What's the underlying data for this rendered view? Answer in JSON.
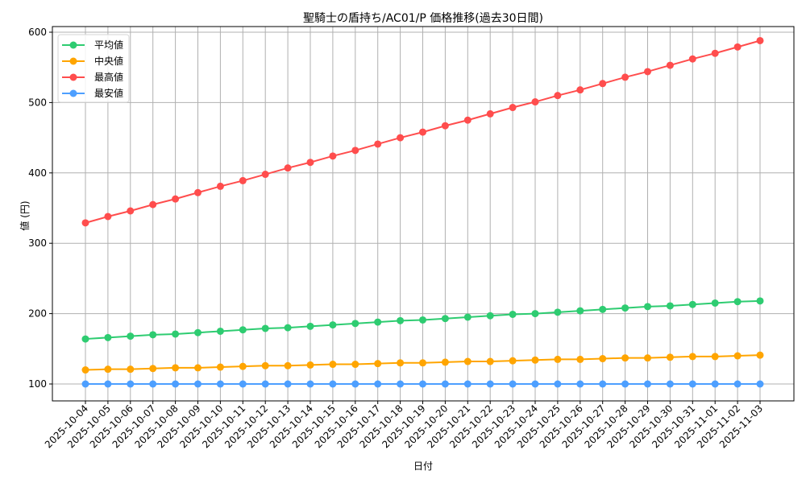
{
  "chart_data": {
    "type": "line",
    "title": "聖騎士の盾持ち/AC01/P 価格推移(過去30日間)",
    "xlabel": "日付",
    "ylabel": "値 (円)",
    "ylim": [
      75,
      605
    ],
    "yticks": [
      100,
      200,
      300,
      400,
      500,
      600
    ],
    "grid": true,
    "legend_position": "upper left",
    "categories": [
      "2025-10-04",
      "2025-10-05",
      "2025-10-06",
      "2025-10-07",
      "2025-10-08",
      "2025-10-09",
      "2025-10-10",
      "2025-10-11",
      "2025-10-12",
      "2025-10-13",
      "2025-10-14",
      "2025-10-15",
      "2025-10-16",
      "2025-10-17",
      "2025-10-18",
      "2025-10-19",
      "2025-10-20",
      "2025-10-21",
      "2025-10-22",
      "2025-10-23",
      "2025-10-24",
      "2025-10-25",
      "2025-10-26",
      "2025-10-27",
      "2025-10-28",
      "2025-10-29",
      "2025-10-30",
      "2025-10-31",
      "2025-11-01",
      "2025-11-02",
      "2025-11-03"
    ],
    "series": [
      {
        "name": "平均値",
        "color": "#2ecc71",
        "values": [
          164,
          166,
          168,
          170,
          171,
          173,
          175,
          177,
          179,
          180,
          182,
          184,
          186,
          188,
          190,
          191,
          193,
          195,
          197,
          199,
          200,
          202,
          204,
          206,
          208,
          210,
          211,
          213,
          215,
          217,
          218
        ]
      },
      {
        "name": "中央値",
        "color": "#ffa500",
        "values": [
          120,
          121,
          121,
          122,
          123,
          123,
          124,
          125,
          126,
          126,
          127,
          128,
          128,
          129,
          130,
          130,
          131,
          132,
          132,
          133,
          134,
          135,
          135,
          136,
          137,
          137,
          138,
          139,
          139,
          140,
          141
        ]
      },
      {
        "name": "最高値",
        "color": "#ff4d4d",
        "values": [
          329,
          338,
          346,
          355,
          363,
          372,
          381,
          389,
          398,
          407,
          415,
          424,
          432,
          441,
          450,
          458,
          467,
          475,
          484,
          493,
          501,
          510,
          518,
          527,
          536,
          544,
          553,
          562,
          570,
          579,
          588
        ]
      },
      {
        "name": "最安値",
        "color": "#4d9fff",
        "values": [
          100,
          100,
          100,
          100,
          100,
          100,
          100,
          100,
          100,
          100,
          100,
          100,
          100,
          100,
          100,
          100,
          100,
          100,
          100,
          100,
          100,
          100,
          100,
          100,
          100,
          100,
          100,
          100,
          100,
          100,
          100
        ]
      }
    ]
  }
}
